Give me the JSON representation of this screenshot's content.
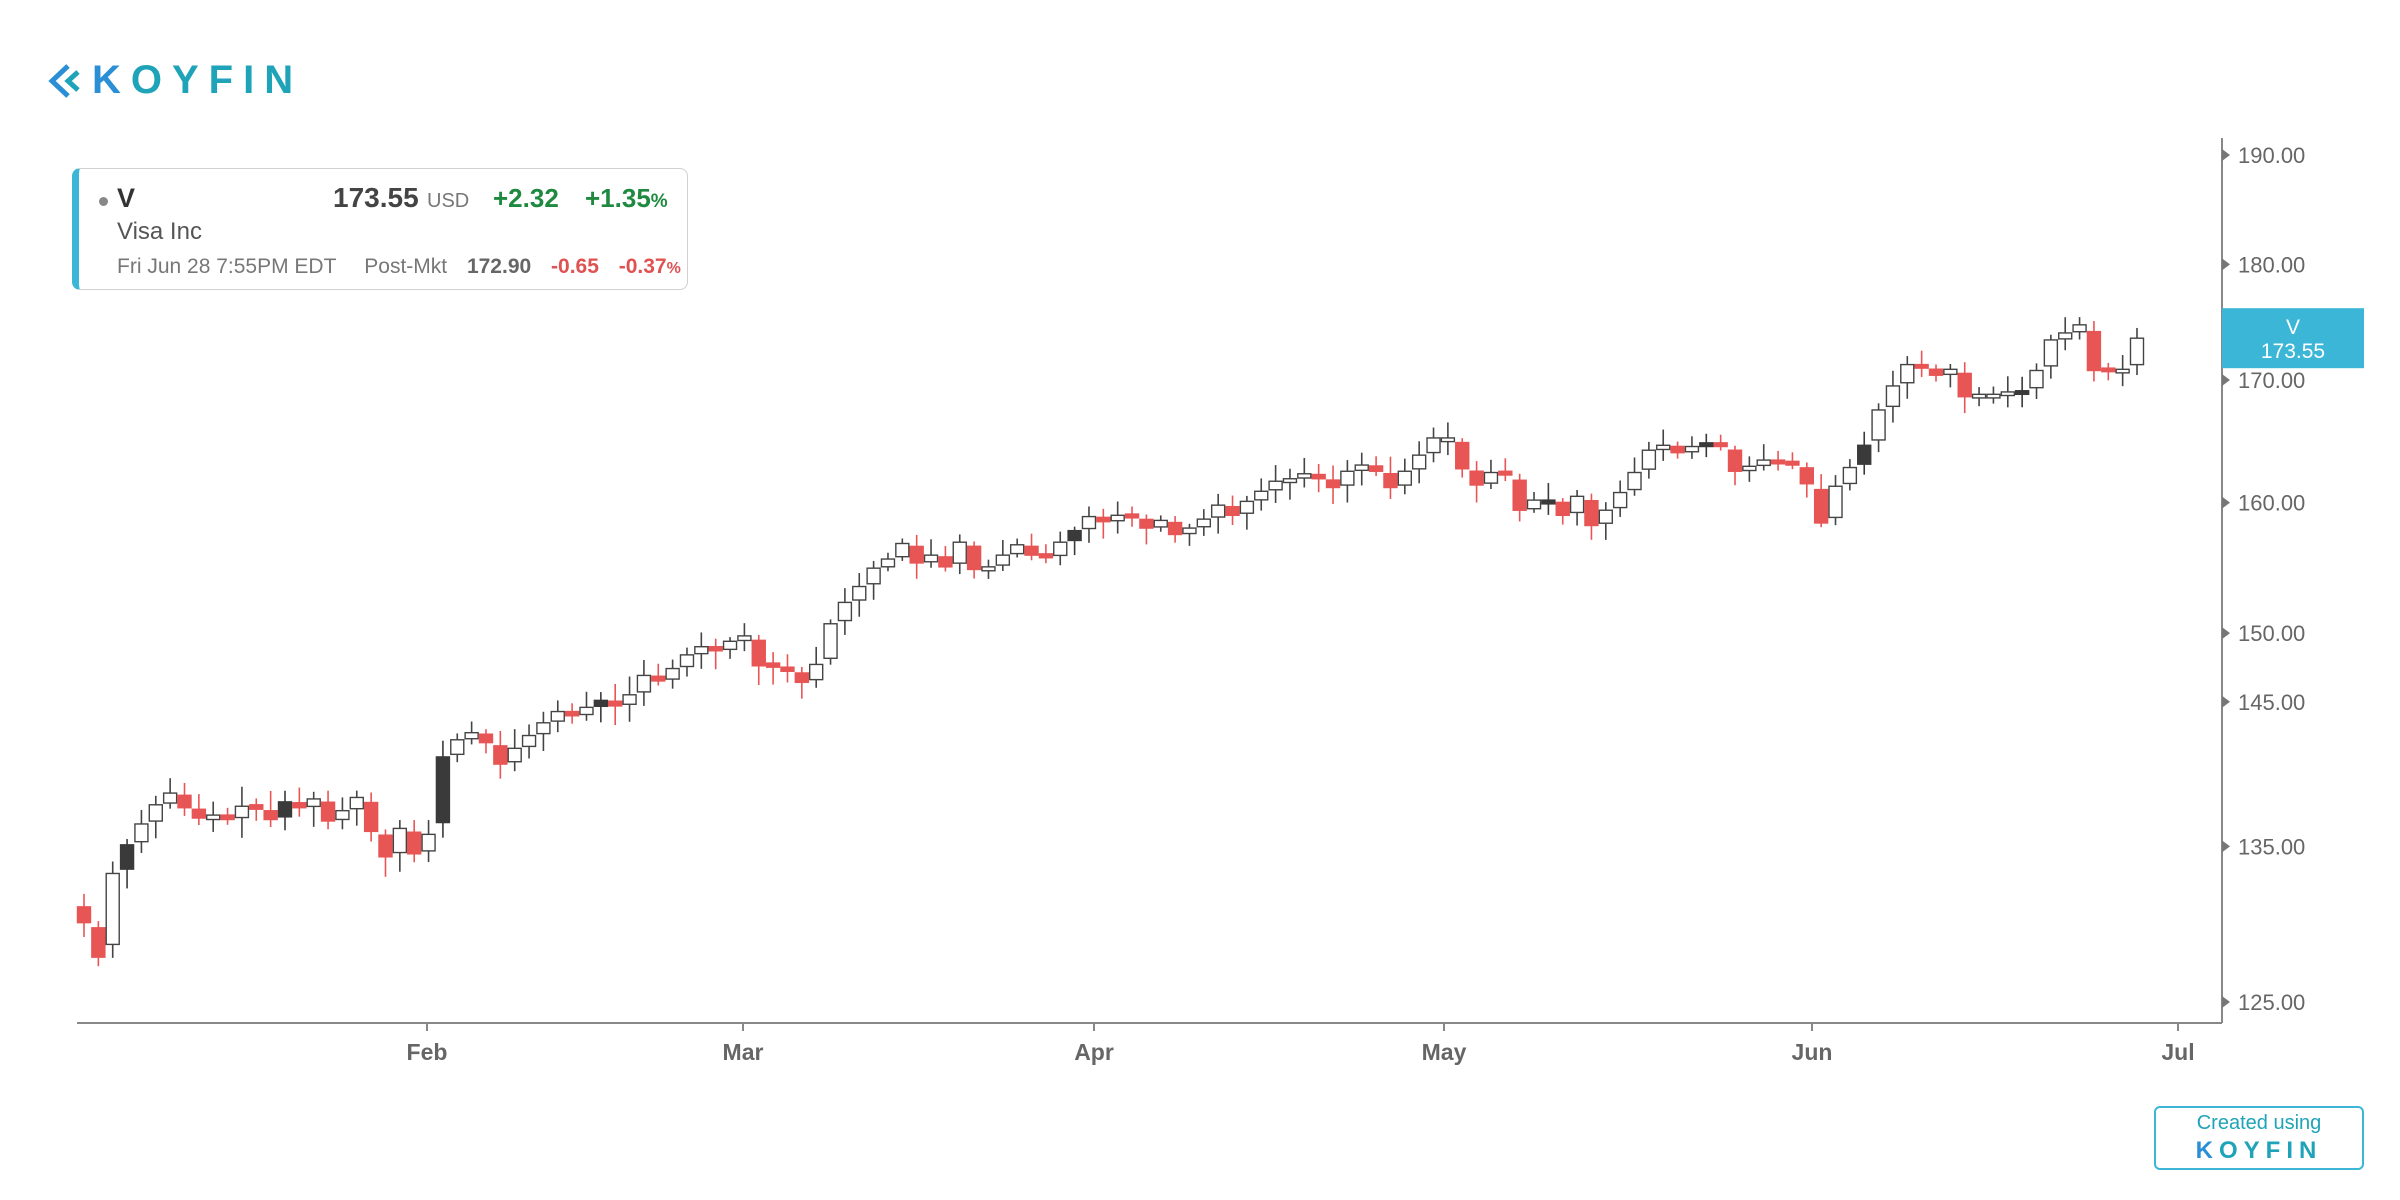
{
  "brand": {
    "logo_text": "KOYFIN",
    "logo_k": "K",
    "logo_rest": "OYFIN"
  },
  "quote": {
    "ticker": "V",
    "price": "173.55",
    "currency": "USD",
    "change": "+2.32",
    "change_pct": "+1.35",
    "pct_sign": "%",
    "company": "Visa Inc",
    "timestamp": "Fri Jun 28 7:55PM EDT",
    "post_label": "Post-Mkt",
    "post_price": "172.90",
    "post_change": "-0.65",
    "post_change_pct": "-0.37",
    "post_pct_sign": "%"
  },
  "colors": {
    "up": "#ffffff",
    "down_fill": "#e85555",
    "dark": "#3a3a3a",
    "accent": "#3bb6d6",
    "positive": "#1f8a3f",
    "negative": "#e05252"
  },
  "chart_data": {
    "type": "candlestick",
    "ticker": "V",
    "last_label": {
      "ticker": "V",
      "value": "173.55"
    },
    "ylim": [
      125,
      190
    ],
    "y_scale": "log",
    "y_ticks": [
      "190.00",
      "180.00",
      "170.00",
      "160.00",
      "150.00",
      "145.00",
      "135.00",
      "125.00"
    ],
    "x_ticks": [
      "Feb",
      "Mar",
      "Apr",
      "May",
      "Jun",
      "Jul"
    ],
    "grid": false,
    "closes": [
      130.0,
      127.8,
      133.2,
      135.1,
      136.5,
      137.8,
      138.6,
      137.6,
      136.9,
      137.1,
      136.8,
      137.7,
      137.5,
      136.8,
      138.0,
      137.6,
      138.2,
      136.7,
      137.4,
      138.3,
      136.0,
      134.3,
      136.2,
      134.5,
      135.8,
      141.1,
      142.3,
      142.8,
      142.1,
      140.6,
      141.7,
      142.6,
      143.5,
      144.3,
      144.0,
      144.6,
      145.1,
      144.7,
      145.5,
      146.9,
      146.5,
      147.4,
      148.4,
      149.0,
      148.7,
      149.4,
      149.8,
      147.6,
      147.5,
      147.2,
      146.4,
      147.7,
      150.7,
      152.3,
      153.5,
      154.9,
      155.6,
      156.8,
      155.3,
      155.9,
      155.0,
      156.9,
      154.8,
      155.0,
      155.9,
      156.7,
      155.9,
      155.7,
      156.9,
      157.8,
      158.9,
      158.5,
      159.0,
      158.8,
      158.0,
      158.6,
      157.5,
      158.0,
      158.7,
      159.8,
      159.0,
      160.1,
      160.9,
      161.7,
      161.9,
      162.3,
      161.9,
      161.2,
      162.5,
      163.0,
      162.5,
      161.2,
      162.5,
      163.8,
      165.2,
      165.2,
      162.7,
      161.4,
      162.4,
      162.2,
      159.4,
      160.2,
      160.2,
      159.0,
      160.5,
      158.2,
      159.4,
      160.8,
      162.4,
      164.2,
      164.6,
      164.0,
      164.5,
      164.8,
      164.5,
      162.5,
      162.9,
      163.4,
      163.1,
      163.0,
      161.5,
      158.4,
      161.3,
      162.8,
      164.6,
      167.5,
      169.5,
      171.3,
      171.0,
      170.4,
      170.9,
      168.6,
      168.8,
      168.8,
      169.0,
      169.1,
      170.8,
      173.4,
      174.0,
      174.7,
      170.8,
      170.7,
      170.9,
      173.55
    ]
  },
  "credit": {
    "line1": "Created using",
    "line2_k": "K",
    "line2_rest": "OYFIN"
  }
}
